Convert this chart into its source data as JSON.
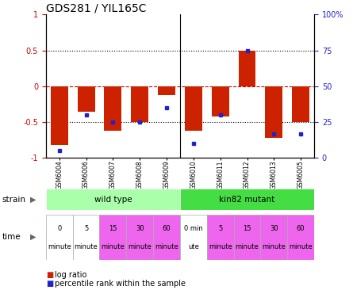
{
  "title": "GDS281 / YIL165C",
  "samples": [
    "GSM6004",
    "GSM6006",
    "GSM6007",
    "GSM6008",
    "GSM6009",
    "GSM6010",
    "GSM6011",
    "GSM6012",
    "GSM6013",
    "GSM6005"
  ],
  "log_ratios": [
    -0.82,
    -0.36,
    -0.62,
    -0.5,
    -0.12,
    -0.62,
    -0.42,
    0.5,
    -0.72,
    -0.5
  ],
  "percentile_ranks": [
    5,
    30,
    25,
    25,
    35,
    10,
    30,
    75,
    17,
    17
  ],
  "bar_color": "#cc2200",
  "dot_color": "#2222cc",
  "ylim_left": [
    -1,
    1
  ],
  "ylim_right": [
    0,
    100
  ],
  "yticks_left": [
    -1,
    -0.5,
    0,
    0.5,
    1
  ],
  "yticks_right": [
    0,
    25,
    50,
    75,
    100
  ],
  "ytick_labels_left": [
    "-1",
    "-0.5",
    "0",
    "0.5",
    "1"
  ],
  "ytick_labels_right": [
    "0",
    "25",
    "50",
    "75",
    "100%"
  ],
  "hline_color": "#cc0000",
  "dotline_color": "#000000",
  "strain_labels": [
    "wild type",
    "kin82 mutant"
  ],
  "strain_colors": [
    "#aaffaa",
    "#44dd44"
  ],
  "time_labels": [
    "0\nminute",
    "5\nminute",
    "15\nminute",
    "30\nminute",
    "60\nminute",
    "0 min\nute",
    "5\nminute",
    "15\nminute",
    "30\nminute",
    "60\nminute"
  ],
  "time_colors": [
    "#ffffff",
    "#ffffff",
    "#ee66ee",
    "#ee66ee",
    "#ee66ee",
    "#ffffff",
    "#ee66ee",
    "#ee66ee",
    "#ee66ee",
    "#ee66ee"
  ],
  "legend_log_color": "#cc2200",
  "legend_pct_color": "#2222cc",
  "bar_width": 0.65
}
